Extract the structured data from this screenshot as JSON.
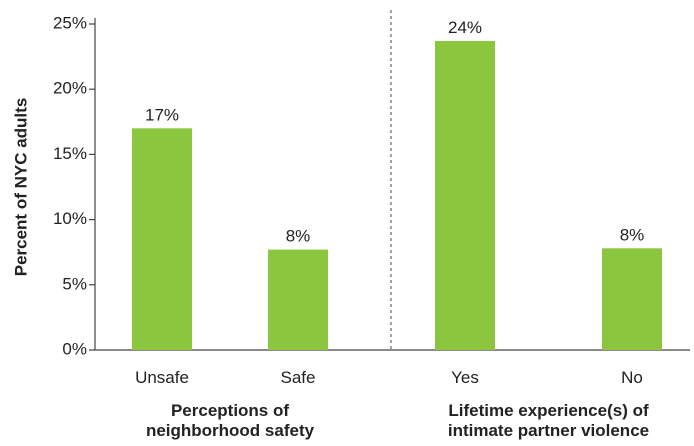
{
  "chart_data": {
    "type": "bar",
    "ylabel": "Percent of NYC adults",
    "ylim": [
      0,
      25
    ],
    "yticks": [
      {
        "value": 0,
        "label": "0%"
      },
      {
        "value": 5,
        "label": "5%"
      },
      {
        "value": 10,
        "label": "10%"
      },
      {
        "value": 15,
        "label": "15%"
      },
      {
        "value": 20,
        "label": "20%"
      },
      {
        "value": 25,
        "label": "25%"
      }
    ],
    "categories": [
      "Unsafe",
      "Safe",
      "Yes",
      "No"
    ],
    "values": [
      17,
      7.7,
      23.7,
      7.8
    ],
    "data_labels": [
      "17%",
      "8%",
      "24%",
      "8%"
    ],
    "bar_color": "#8cc63f",
    "grid": false,
    "groups": [
      {
        "label_lines": [
          "Perceptions of",
          "neighborhood safety"
        ],
        "categories": [
          "Unsafe",
          "Safe"
        ]
      },
      {
        "label_lines": [
          "Lifetime experience(s) of",
          "intimate partner violence"
        ],
        "categories": [
          "Yes",
          "No"
        ]
      }
    ],
    "group_separator": "dashed"
  }
}
